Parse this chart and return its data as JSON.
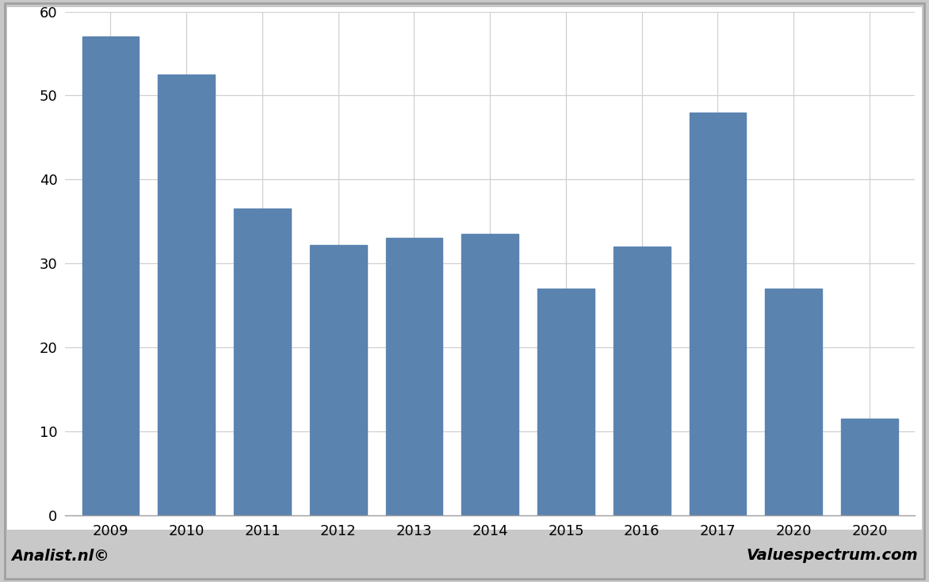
{
  "categories": [
    "2009",
    "2010",
    "2011",
    "2012",
    "2013",
    "2014",
    "2015",
    "2016",
    "2017",
    "2020",
    "2020"
  ],
  "values": [
    57.0,
    52.5,
    36.5,
    32.2,
    33.0,
    33.5,
    27.0,
    32.0,
    48.0,
    27.0,
    11.5
  ],
  "bar_color": "#5b83b0",
  "chart_background": "#ffffff",
  "outer_background": "#c8c8c8",
  "border_color": "#a0a0a0",
  "ylim": [
    0,
    60
  ],
  "yticks": [
    0,
    10,
    20,
    30,
    40,
    50,
    60
  ],
  "grid_color": "#d0d0d0",
  "footer_left": "Analist.nl©",
  "footer_right": "Valuespectrum.com",
  "bar_width": 0.75
}
